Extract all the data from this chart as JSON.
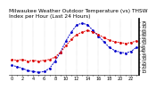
{
  "title": "Milwaukee Weather Outdoor Temperature (vs) THSW Index per Hour (Last 24 Hours)",
  "title_fontsize": 4.2,
  "bg_color": "#ffffff",
  "plot_bg_color": "#ffffff",
  "grid_color": "#aaaaaa",
  "hours": [
    0,
    1,
    2,
    3,
    4,
    5,
    6,
    7,
    8,
    9,
    10,
    11,
    12,
    13,
    14,
    15,
    16,
    17,
    18,
    19,
    20,
    21,
    22,
    23
  ],
  "temp": [
    29,
    28,
    29,
    27,
    28,
    27,
    28,
    29,
    32,
    38,
    46,
    54,
    60,
    63,
    65,
    63,
    60,
    56,
    53,
    51,
    50,
    49,
    50,
    52
  ],
  "thsw": [
    22,
    20,
    18,
    15,
    14,
    13,
    14,
    18,
    27,
    38,
    52,
    63,
    72,
    74,
    72,
    65,
    58,
    51,
    44,
    40,
    38,
    37,
    39,
    44
  ],
  "temp_color": "#dd0000",
  "thsw_color": "#0000cc",
  "marker_size": 2.0,
  "line_width": 0.7,
  "ylim": [
    10,
    80
  ],
  "ytick_values": [
    75,
    70,
    65,
    60,
    55,
    50,
    45,
    40,
    35,
    30,
    25,
    20,
    15
  ],
  "tick_fontsize": 3.5,
  "xlabel_fontsize": 3.5
}
